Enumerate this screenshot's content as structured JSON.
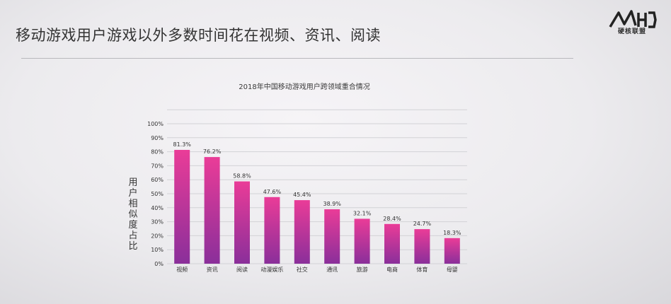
{
  "slide": {
    "title": "移动游戏用户游戏以外多数时间花在视频、资讯、阅读",
    "logo_text": "硬核联盟"
  },
  "colors": {
    "bar_top": "#ea3c98",
    "bar_bottom": "#8a2f9a"
  },
  "chart_data": {
    "type": "bar",
    "title": "2018年中国移动游戏用户跨领域重合情况",
    "xlabel": "",
    "ylabel": "用户相似度占比",
    "ylim": [
      0,
      100
    ],
    "yticks": [
      "0%",
      "10%",
      "20%",
      "30%",
      "40%",
      "50%",
      "60%",
      "70%",
      "80%",
      "90%",
      "100%"
    ],
    "grid": true,
    "categories": [
      "视频",
      "资讯",
      "阅读",
      "动漫娱乐",
      "社交",
      "通讯",
      "旅游",
      "电商",
      "体育",
      "母婴"
    ],
    "values": [
      81.3,
      76.2,
      58.8,
      47.6,
      45.4,
      38.9,
      32.1,
      28.4,
      24.7,
      18.3
    ],
    "value_labels": [
      "81.3%",
      "76.2%",
      "58.8%",
      "47.6%",
      "45.4%",
      "38.9%",
      "32.1%",
      "28.4%",
      "24.7%",
      "18.3%"
    ]
  }
}
